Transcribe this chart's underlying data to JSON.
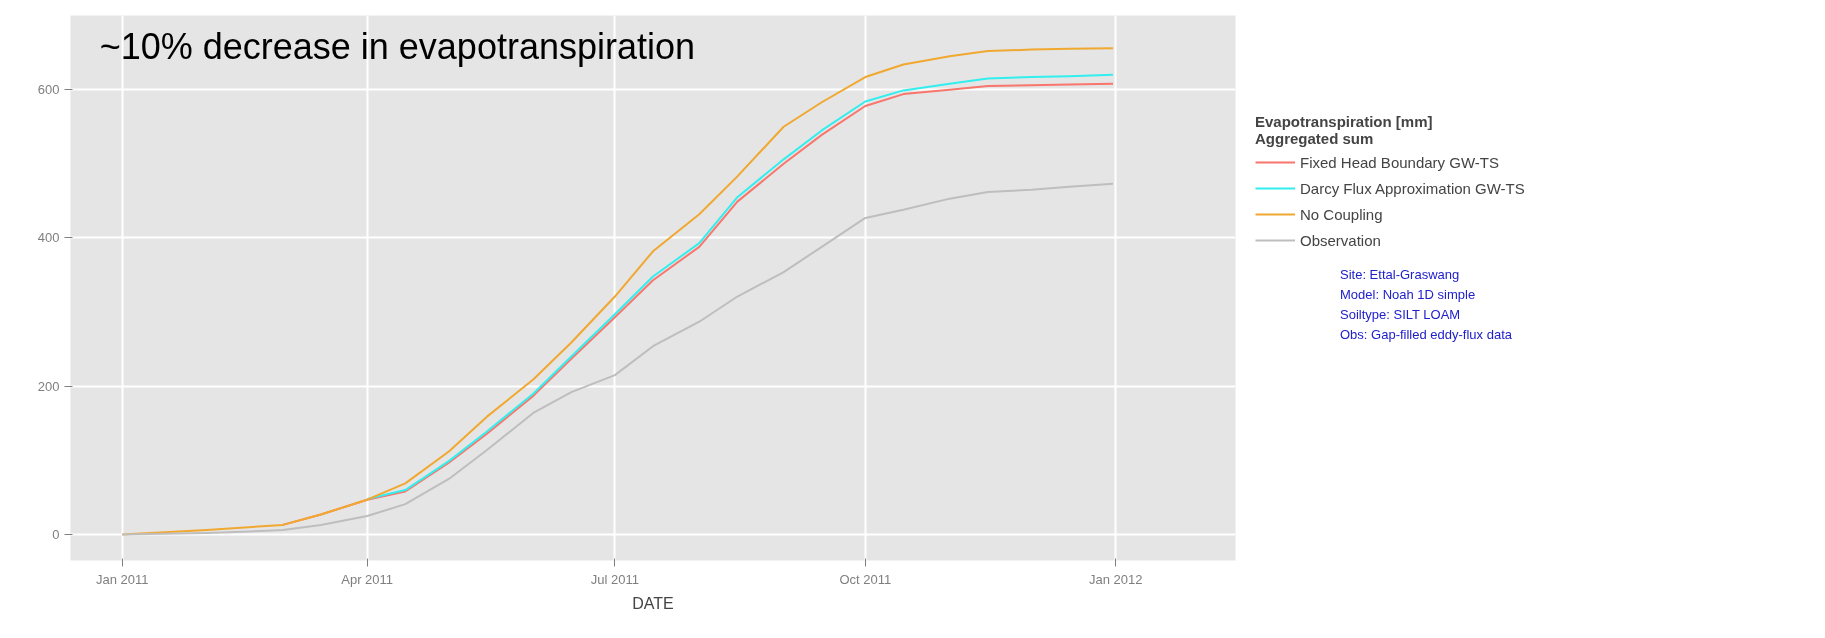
{
  "chart_data": {
    "type": "line",
    "annotations": [
      "~10% decrease in evapotranspiration",
      "Site: Ettal-Graswang",
      "Model: Noah 1D simple",
      "Soiltype: SILT LOAM",
      "Obs: Gap-filled eddy-flux data"
    ],
    "xlabel": "DATE",
    "legend_title": "Evapotranspiration [mm]\nAggregated sum",
    "x": [
      "2011-01-01",
      "2011-02-01",
      "2011-03-01",
      "2011-03-15",
      "2011-04-01",
      "2011-04-15",
      "2011-05-01",
      "2011-05-15",
      "2011-06-01",
      "2011-06-15",
      "2011-07-01",
      "2011-07-15",
      "2011-08-01",
      "2011-08-15",
      "2011-09-01",
      "2011-09-15",
      "2011-10-01",
      "2011-10-15",
      "2011-11-01",
      "2011-11-15",
      "2011-12-01",
      "2011-12-15",
      "2011-12-31"
    ],
    "series": [
      {
        "name": "Fixed Head Boundary GW-TS",
        "color": "#f8766d",
        "values": [
          null,
          null,
          13,
          27,
          47,
          58,
          97,
          136,
          187,
          237,
          293,
          343,
          388,
          449,
          500,
          539,
          578,
          594,
          600,
          605,
          606,
          607,
          608
        ]
      },
      {
        "name": "Darcy Flux Approximation GW-TS",
        "color": "#33eeee",
        "values": [
          null,
          null,
          null,
          null,
          48,
          60,
          99,
          139,
          190,
          240,
          297,
          348,
          393,
          455,
          506,
          545,
          584,
          599,
          608,
          615,
          617,
          618,
          620
        ]
      },
      {
        "name": "No Coupling",
        "color": "#f0a830",
        "values": [
          0,
          6,
          13,
          27,
          47,
          69,
          112,
          159,
          209,
          259,
          321,
          382,
          432,
          483,
          550,
          583,
          617,
          634,
          645,
          652,
          654,
          655,
          656
        ]
      },
      {
        "name": "Observation",
        "color": "#bebebe",
        "values": [
          0,
          2,
          6,
          13,
          25,
          41,
          75,
          114,
          164,
          192,
          215,
          254,
          287,
          321,
          354,
          388,
          427,
          438,
          453,
          462,
          465,
          469,
          473
        ]
      }
    ],
    "xlim": [
      "2010-12-13",
      "2012-02-14"
    ],
    "xticks": [
      {
        "value": "2011-01-01",
        "label": "Jan 2011"
      },
      {
        "value": "2011-04-01",
        "label": "Apr 2011"
      },
      {
        "value": "2011-07-01",
        "label": "Jul 2011"
      },
      {
        "value": "2011-10-01",
        "label": "Oct 2011"
      },
      {
        "value": "2012-01-01",
        "label": "Jan 2012"
      }
    ],
    "ylim": [
      -35,
      700
    ],
    "yticks": [
      0,
      200,
      400,
      600
    ],
    "grid": true,
    "legend": "right"
  }
}
